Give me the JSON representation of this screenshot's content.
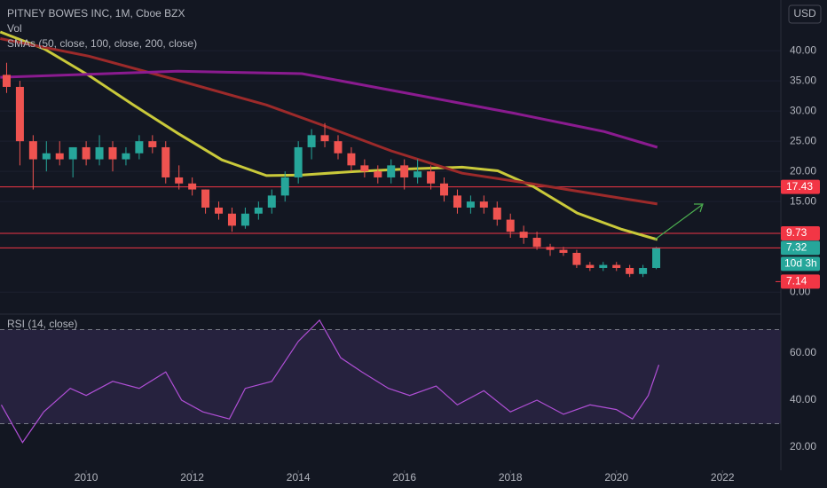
{
  "chart_data": [
    {
      "type": "candlestick",
      "title": "PITNEY BOWES INC, 1M, Cboe BZX",
      "indicators": [
        "Vol",
        "SMAs (50, close, 100, close, 200, close)"
      ],
      "currency": "USD",
      "xlim": [
        2008.375,
        2023.1
      ],
      "ylim": [
        -3.5,
        48.4
      ],
      "yticks": [
        {
          "value": 0,
          "label": "0.00"
        },
        {
          "value": 15,
          "label": "15.00"
        },
        {
          "value": 20,
          "label": "20.00"
        },
        {
          "value": 25,
          "label": "25.00"
        },
        {
          "value": 30,
          "label": "30.00"
        },
        {
          "value": 35,
          "label": "35.00"
        },
        {
          "value": 40,
          "label": "40.00"
        }
      ],
      "grid": true,
      "up_color": "#26a69a",
      "down_color": "#ef5350",
      "candles": {
        "x": [
          2008.5,
          2008.75,
          2009.0,
          2009.25,
          2009.5,
          2009.75,
          2010.0,
          2010.25,
          2010.5,
          2010.75,
          2011.0,
          2011.25,
          2011.5,
          2011.75,
          2012.0,
          2012.25,
          2012.5,
          2012.75,
          2013.0,
          2013.25,
          2013.5,
          2013.75,
          2014.0,
          2014.25,
          2014.5,
          2014.75,
          2015.0,
          2015.25,
          2015.5,
          2015.75,
          2016.0,
          2016.25,
          2016.5,
          2016.75,
          2017.0,
          2017.25,
          2017.5,
          2017.75,
          2018.0,
          2018.25,
          2018.5,
          2018.75,
          2019.0,
          2019.25,
          2019.5,
          2019.75,
          2020.0,
          2020.25,
          2020.5,
          2020.75
        ],
        "open": [
          36,
          34,
          25,
          22,
          23,
          22,
          24,
          22,
          24,
          22,
          23,
          25,
          24,
          19,
          18,
          17,
          14,
          13,
          11,
          13,
          14,
          16,
          19,
          24,
          26,
          25,
          23,
          21,
          20,
          19,
          21,
          19,
          20,
          18,
          16,
          14,
          15,
          14,
          12,
          10,
          9,
          7.5,
          7,
          6.5,
          4.5,
          4,
          4.5,
          4,
          3,
          4
        ],
        "high": [
          38,
          35,
          26,
          25,
          25,
          24,
          25,
          26,
          25,
          24,
          26,
          26,
          25,
          21,
          19,
          17,
          15,
          14,
          14,
          15,
          17,
          20,
          25,
          27,
          28,
          26,
          24,
          22,
          21,
          22,
          22,
          22,
          21,
          19,
          17,
          16,
          16,
          15,
          13,
          11,
          10,
          8,
          7.5,
          7,
          5,
          5,
          5,
          4.5,
          4.5,
          7.5
        ],
        "low": [
          33,
          21,
          17,
          20,
          21,
          19,
          21,
          21,
          20,
          21,
          22,
          23,
          18,
          17,
          16,
          13,
          12,
          10,
          10.5,
          12,
          13,
          15,
          18,
          22,
          24,
          22,
          20,
          19,
          18,
          18,
          17,
          18,
          17,
          15,
          13,
          13,
          13,
          11,
          9,
          8,
          7,
          6,
          6,
          4,
          3.5,
          3.5,
          3.5,
          2.5,
          2.5,
          3.8
        ],
        "close": [
          34,
          25,
          22,
          23,
          22,
          24,
          22,
          24,
          22,
          23,
          25,
          24,
          19,
          18,
          17,
          14,
          13,
          11,
          13,
          14,
          16,
          19,
          24,
          26,
          25,
          23,
          21,
          20,
          19,
          21,
          19,
          20,
          18,
          16,
          14,
          15,
          14,
          12,
          10,
          9,
          7.5,
          7,
          6.5,
          4.5,
          4,
          4.5,
          4,
          3,
          4,
          7.32
        ]
      },
      "series": [
        {
          "color": "#c9c93a",
          "x": [
            2008.38,
            2009.21,
            2010.05,
            2010.89,
            2011.73,
            2012.56,
            2013.4,
            2014.07,
            2015.08,
            2016.08,
            2017.09,
            2017.76,
            2018.43,
            2019.26,
            2020.1,
            2020.77
          ],
          "values": [
            43.1,
            40.3,
            35.9,
            31.0,
            26.3,
            21.9,
            19.3,
            19.4,
            20.0,
            20.4,
            20.7,
            20.1,
            17.5,
            13.1,
            10.4,
            8.7
          ]
        },
        {
          "color": "#9c2a2a",
          "x": [
            2008.38,
            2010.05,
            2011.73,
            2013.4,
            2014.41,
            2015.75,
            2017.09,
            2018.43,
            2019.77,
            2020.77
          ],
          "values": [
            42.0,
            39.1,
            35.1,
            31.0,
            27.8,
            23.4,
            19.7,
            17.9,
            16.0,
            14.6
          ]
        },
        {
          "color": "#8a1b8f",
          "x": [
            2008.38,
            2011.73,
            2014.07,
            2016.08,
            2018.09,
            2019.77,
            2020.77
          ],
          "values": [
            35.6,
            36.6,
            36.2,
            32.9,
            29.6,
            26.6,
            24.0
          ]
        }
      ],
      "levels": [
        {
          "value": 17.43,
          "color": "#f23645"
        },
        {
          "value": 9.73,
          "color": "#f23645"
        }
      ],
      "last_price": 7.32,
      "last_color": "#26a69a",
      "countdown": "10d 3h",
      "price_labels": [
        {
          "value": 7.14,
          "color": "#f23645"
        }
      ]
    },
    {
      "type": "line",
      "title": "RSI (14, close)",
      "xlim": [
        2008.375,
        2023.1
      ],
      "ylim": [
        10.2,
        76.2
      ],
      "yticks": [
        {
          "value": 20,
          "label": "20.00"
        },
        {
          "value": 40,
          "label": "40.00"
        },
        {
          "value": 60,
          "label": "60.00"
        }
      ],
      "xticks": [
        2010,
        2012,
        2014,
        2016,
        2018,
        2020,
        2022
      ],
      "bands": [
        30,
        70
      ],
      "band_color": "#7e57c2",
      "series": [
        {
          "color": "#b04fd6",
          "x": [
            2008.4,
            2008.8,
            2009.2,
            2009.7,
            2010.0,
            2010.5,
            2011.0,
            2011.5,
            2011.8,
            2012.2,
            2012.7,
            2013.0,
            2013.5,
            2014.0,
            2014.4,
            2014.8,
            2015.2,
            2015.7,
            2016.1,
            2016.6,
            2017.0,
            2017.5,
            2018.0,
            2018.5,
            2019.0,
            2019.5,
            2020.0,
            2020.3,
            2020.6,
            2020.8
          ],
          "values": [
            38,
            22,
            35,
            45,
            42,
            48,
            45,
            52,
            40,
            35,
            32,
            45,
            48,
            65,
            74,
            58,
            52,
            45,
            42,
            46,
            38,
            44,
            35,
            40,
            34,
            38,
            36,
            32,
            42,
            55
          ]
        }
      ]
    }
  ]
}
